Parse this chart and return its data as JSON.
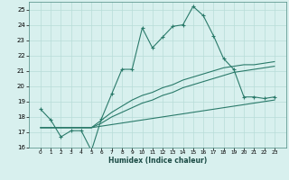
{
  "xlabel": "Humidex (Indice chaleur)",
  "x": [
    0,
    1,
    2,
    3,
    4,
    5,
    6,
    7,
    8,
    9,
    10,
    11,
    12,
    13,
    14,
    15,
    16,
    17,
    18,
    19,
    20,
    21,
    22,
    23
  ],
  "line1": [
    18.5,
    17.8,
    16.7,
    17.1,
    17.1,
    15.8,
    17.9,
    19.5,
    21.1,
    21.1,
    23.8,
    22.5,
    23.2,
    23.9,
    24.0,
    25.2,
    24.6,
    23.3,
    21.8,
    21.1,
    19.3,
    19.3,
    19.2,
    19.3
  ],
  "line2": [
    17.3,
    17.3,
    17.3,
    17.3,
    17.3,
    17.3,
    17.4,
    17.5,
    17.6,
    17.7,
    17.8,
    17.9,
    18.0,
    18.1,
    18.2,
    18.3,
    18.4,
    18.5,
    18.6,
    18.7,
    18.8,
    18.9,
    19.0,
    19.1
  ],
  "line3": [
    17.3,
    17.3,
    17.3,
    17.3,
    17.3,
    17.3,
    17.6,
    18.0,
    18.3,
    18.6,
    18.9,
    19.1,
    19.4,
    19.6,
    19.9,
    20.1,
    20.3,
    20.5,
    20.7,
    20.9,
    21.0,
    21.1,
    21.2,
    21.3
  ],
  "line4": [
    17.3,
    17.3,
    17.3,
    17.3,
    17.3,
    17.3,
    17.8,
    18.3,
    18.7,
    19.1,
    19.4,
    19.6,
    19.9,
    20.1,
    20.4,
    20.6,
    20.8,
    21.0,
    21.2,
    21.3,
    21.4,
    21.4,
    21.5,
    21.6
  ],
  "line_color": "#2a7a6a",
  "bg_color": "#d8f0ee",
  "grid_color": "#b8dcd8",
  "ylim": [
    16,
    25.5
  ],
  "yticks": [
    16,
    17,
    18,
    19,
    20,
    21,
    22,
    23,
    24,
    25
  ],
  "xticks": [
    0,
    1,
    2,
    3,
    4,
    5,
    6,
    7,
    8,
    9,
    10,
    11,
    12,
    13,
    14,
    15,
    16,
    17,
    18,
    19,
    20,
    21,
    22,
    23
  ]
}
